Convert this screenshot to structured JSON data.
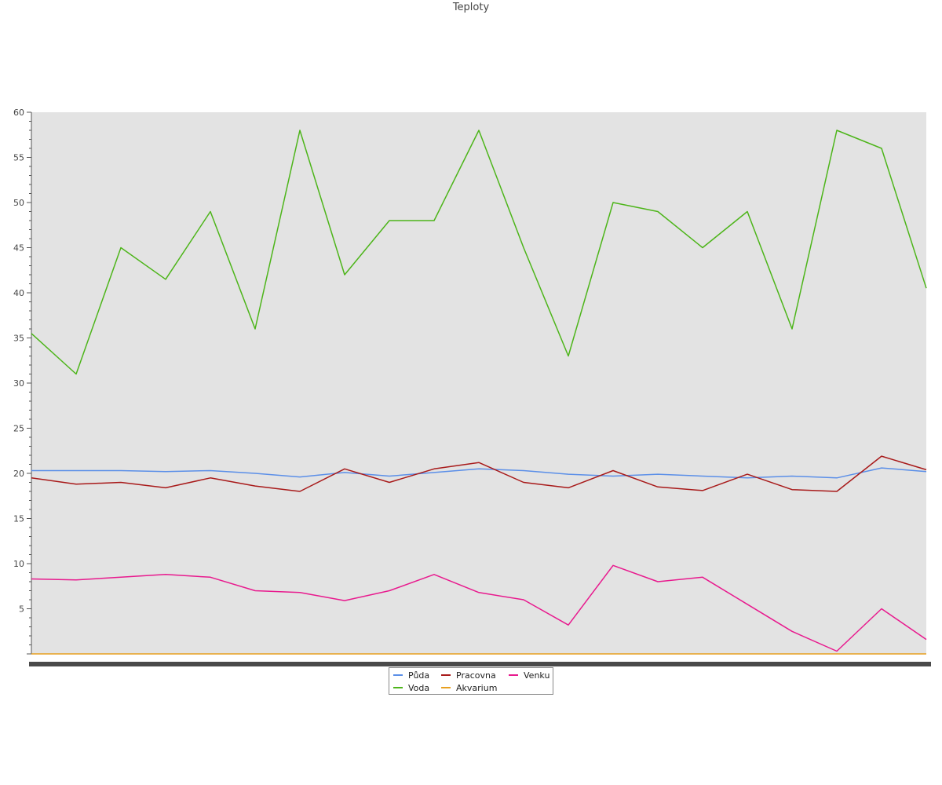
{
  "chart_data": {
    "type": "line",
    "title": "Teploty",
    "xlabel": "",
    "ylabel": "",
    "ylim": [
      0,
      60
    ],
    "yticks": [
      5,
      10,
      15,
      20,
      25,
      30,
      35,
      40,
      45,
      50,
      55,
      60
    ],
    "grid": false,
    "legend_position": "bottom-center",
    "x": [
      0,
      0.05,
      0.1,
      0.15,
      0.2,
      0.25,
      0.3,
      0.35,
      0.4,
      0.45,
      0.5,
      0.55,
      0.6,
      0.65,
      0.7,
      0.75,
      0.8,
      0.85,
      0.9,
      0.95,
      1
    ],
    "series": [
      {
        "name": "Půda",
        "color": "#5b8fe8",
        "values": [
          20.3,
          20.3,
          20.3,
          20.2,
          20.3,
          20.0,
          19.6,
          20.1,
          19.7,
          20.1,
          20.5,
          20.3,
          19.9,
          19.7,
          19.9,
          19.7,
          19.5,
          19.7,
          19.5,
          20.6,
          20.2
        ]
      },
      {
        "name": "Voda",
        "color": "#4db51a",
        "values": [
          35.5,
          31.0,
          45.0,
          41.5,
          49.0,
          36.0,
          58.0,
          42.0,
          48.0,
          48.0,
          58.0,
          45.0,
          33.0,
          50.0,
          49.0,
          45.0,
          49.0,
          36.0,
          58.0,
          56.0,
          40.5
        ]
      },
      {
        "name": "Pracovna",
        "color": "#a81a1a",
        "values": [
          19.5,
          18.8,
          19.0,
          18.4,
          19.5,
          18.6,
          18.0,
          20.5,
          19.0,
          20.5,
          21.2,
          19.0,
          18.4,
          20.3,
          18.5,
          18.1,
          19.9,
          18.2,
          18.0,
          21.9,
          20.4
        ]
      },
      {
        "name": "Akvarium",
        "color": "#e8a020",
        "values": [
          0,
          0,
          0,
          0,
          0,
          0,
          0,
          0,
          0,
          0,
          0,
          0,
          0,
          0,
          0,
          0,
          0,
          0,
          0,
          0,
          0
        ]
      },
      {
        "name": "Venku",
        "color": "#e81a8e",
        "values": [
          8.3,
          8.2,
          8.5,
          8.8,
          8.5,
          7.0,
          6.8,
          5.9,
          7.0,
          8.8,
          6.8,
          6.0,
          3.2,
          9.8,
          8.0,
          8.5,
          5.5,
          2.5,
          0.3,
          5.0,
          1.6
        ]
      }
    ]
  }
}
